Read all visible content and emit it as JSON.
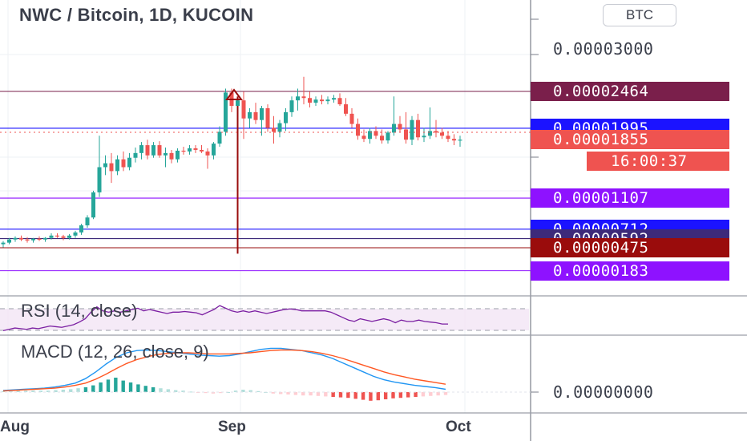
{
  "header": {
    "title": "NWC / Bitcoin, 1D, KUCOIN",
    "currency_badge": "BTC"
  },
  "price_axis": {
    "tick_labels": [
      {
        "text": "0.00003000",
        "value": 3e-05
      },
      {
        "text": "0.00002464",
        "value": 2.464e-05,
        "highlight": true,
        "color": "#7a1f4b"
      },
      {
        "text": "0.00001995",
        "value": 1.995e-05,
        "highlight": true,
        "color": "#1b13ff"
      },
      {
        "text": "0.00001855",
        "value": 1.855e-05,
        "highlight": true,
        "color": "#ef5350"
      },
      {
        "text": "0.00001107",
        "value": 1.107e-05,
        "highlight": true,
        "color": "#8e12ff"
      },
      {
        "text": "0.00000712",
        "value": 7.12e-06,
        "highlight": true,
        "color": "#1b13ff"
      },
      {
        "text": "0.00000592",
        "value": 5.92e-06,
        "highlight": true,
        "color": "#3d2a7a"
      },
      {
        "text": "0.00000475",
        "value": 4.75e-06,
        "highlight": true,
        "color": "#9a0c0c"
      },
      {
        "text": "0.00000183",
        "value": 1.83e-06,
        "highlight": true,
        "color": "#8e12ff"
      }
    ],
    "countdown": "16:00:37",
    "countdown_color": "#ef5350"
  },
  "indicators": {
    "rsi_label": "RSI (14, close)",
    "macd_label": "MACD (12, 26, close, 9)",
    "macd_axis_label": "0.00000000"
  },
  "time_axis": {
    "labels": [
      "Aug",
      "Sep",
      "Oct"
    ]
  },
  "colors": {
    "up": "#26a69a",
    "down": "#ef5350",
    "rsi_line": "#7b1fa2",
    "macd_line": "#2196f3",
    "signal_line": "#ff5722"
  },
  "chart_data": {
    "type": "candlestick",
    "title": "NWC / Bitcoin, 1D, KUCOIN",
    "price_unit": "BTC",
    "last_price": 1.855e-05,
    "horizontal_levels": [
      2.464e-05,
      1.995e-05,
      1.107e-05,
      7.12e-06,
      5.92e-06,
      4.75e-06,
      1.83e-06
    ],
    "candles": [
      [
        5.2e-06,
        5.6e-06,
        4.8e-06,
        5.4e-06
      ],
      [
        5.4e-06,
        6e-06,
        5.2e-06,
        5.8e-06
      ],
      [
        5.8e-06,
        6.2e-06,
        5.5e-06,
        6e-06
      ],
      [
        6e-06,
        6.3e-06,
        5.6e-06,
        5.8e-06
      ],
      [
        5.8e-06,
        6.1e-06,
        5.4e-06,
        5.7e-06
      ],
      [
        5.7e-06,
        6e-06,
        5.4e-06,
        5.9e-06
      ],
      [
        5.9e-06,
        6.2e-06,
        5.6e-06,
        5.8e-06
      ],
      [
        5.8e-06,
        6.1e-06,
        5.5e-06,
        6e-06
      ],
      [
        6e-06,
        6.6e-06,
        5.8e-06,
        6.3e-06
      ],
      [
        6.3e-06,
        6.6e-06,
        6e-06,
        6.2e-06
      ],
      [
        6.2e-06,
        6.4e-06,
        5.7e-06,
        6e-06
      ],
      [
        6e-06,
        6.5e-06,
        5.8e-06,
        6.3e-06
      ],
      [
        6.3e-06,
        6.9e-06,
        6e-06,
        6.7e-06
      ],
      [
        6.7e-06,
        7.8e-06,
        6.4e-06,
        7.6e-06
      ],
      [
        7.6e-06,
        8.9e-06,
        7.3e-06,
        8.6e-06
      ],
      [
        8.6e-06,
        1.2e-05,
        8.4e-06,
        1.18e-05
      ],
      [
        1.18e-05,
        1.9e-05,
        1.12e-05,
        1.5e-05
      ],
      [
        1.5e-05,
        1.65e-05,
        1.4e-05,
        1.55e-05
      ],
      [
        1.55e-05,
        1.68e-05,
        1.3e-05,
        1.45e-05
      ],
      [
        1.45e-05,
        1.65e-05,
        1.4e-05,
        1.6e-05
      ],
      [
        1.6e-05,
        1.7e-05,
        1.45e-05,
        1.5e-05
      ],
      [
        1.5e-05,
        1.68e-05,
        1.46e-05,
        1.62e-05
      ],
      [
        1.62e-05,
        1.75e-05,
        1.56e-05,
        1.68e-05
      ],
      [
        1.68e-05,
        1.82e-05,
        1.6e-05,
        1.78e-05
      ],
      [
        1.78e-05,
        1.85e-05,
        1.6e-05,
        1.65e-05
      ],
      [
        1.65e-05,
        1.82e-05,
        1.62e-05,
        1.78e-05
      ],
      [
        1.78e-05,
        1.83e-05,
        1.62e-05,
        1.65e-05
      ],
      [
        1.65e-05,
        1.75e-05,
        1.5e-05,
        1.68e-05
      ],
      [
        1.68e-05,
        1.72e-05,
        1.55e-05,
        1.6e-05
      ],
      [
        1.6e-05,
        1.74e-05,
        1.56e-05,
        1.71e-05
      ],
      [
        1.71e-05,
        1.76e-05,
        1.66e-05,
        1.7e-05
      ],
      [
        1.7e-05,
        1.78e-05,
        1.66e-05,
        1.74e-05
      ],
      [
        1.74e-05,
        1.78e-05,
        1.68e-05,
        1.72e-05
      ],
      [
        1.72e-05,
        1.78e-05,
        1.68e-05,
        1.7e-05
      ],
      [
        1.7e-05,
        1.74e-05,
        1.48e-05,
        1.65e-05
      ],
      [
        1.65e-05,
        1.82e-05,
        1.6e-05,
        1.8e-05
      ],
      [
        1.8e-05,
        2.02e-05,
        1.76e-05,
        1.95e-05
      ],
      [
        1.95e-05,
        2.5e-05,
        1.9e-05,
        2.45e-05
      ],
      [
        2.45e-05,
        2.5e-05,
        2.2e-05,
        2.28e-05
      ],
      [
        2.28e-05,
        2.4e-05,
        4e-06,
        2.35e-05
      ],
      [
        2.35e-05,
        2.46e-05,
        1.86e-05,
        2.12e-05
      ],
      [
        2.12e-05,
        2.25e-05,
        2e-05,
        2.2e-05
      ],
      [
        2.2e-05,
        2.32e-05,
        2.05e-05,
        2.1e-05
      ],
      [
        2.1e-05,
        2.28e-05,
        1.9e-05,
        2.25e-05
      ],
      [
        2.25e-05,
        2.3e-05,
        1.95e-05,
        2e-05
      ],
      [
        2e-05,
        2.15e-05,
        1.8e-05,
        1.95e-05
      ],
      [
        1.95e-05,
        2.1e-05,
        1.88e-05,
        2.06e-05
      ],
      [
        2.06e-05,
        2.25e-05,
        1.96e-05,
        2.2e-05
      ],
      [
        2.2e-05,
        2.4e-05,
        2.14e-05,
        2.35e-05
      ],
      [
        2.35e-05,
        2.5e-05,
        2.22e-05,
        2.4e-05
      ],
      [
        2.4e-05,
        2.65e-05,
        2.3e-05,
        2.38e-05
      ],
      [
        2.38e-05,
        2.46e-05,
        2.26e-05,
        2.32e-05
      ],
      [
        2.32e-05,
        2.4e-05,
        2.28e-05,
        2.36e-05
      ],
      [
        2.36e-05,
        2.42e-05,
        2.3e-05,
        2.34e-05
      ],
      [
        2.34e-05,
        2.4e-05,
        2.3e-05,
        2.36e-05
      ],
      [
        2.36e-05,
        2.42e-05,
        2.32e-05,
        2.38e-05
      ],
      [
        2.38e-05,
        2.44e-05,
        2.28e-05,
        2.3e-05
      ],
      [
        2.3e-05,
        2.38e-05,
        2.15e-05,
        2.18e-05
      ],
      [
        2.18e-05,
        2.25e-05,
        2e-05,
        2.05e-05
      ],
      [
        2.05e-05,
        2.12e-05,
        1.85e-05,
        1.9e-05
      ],
      [
        1.9e-05,
        1.98e-05,
        1.82e-05,
        1.86e-05
      ],
      [
        1.86e-05,
        2e-05,
        1.8e-05,
        1.96e-05
      ],
      [
        1.96e-05,
        2.02e-05,
        1.86e-05,
        1.9e-05
      ],
      [
        1.9e-05,
        1.98e-05,
        1.8e-05,
        1.84e-05
      ],
      [
        1.84e-05,
        1.96e-05,
        1.8e-05,
        1.94e-05
      ],
      [
        1.94e-05,
        2.4e-05,
        1.9e-05,
        2.05e-05
      ],
      [
        2.05e-05,
        2.15e-05,
        1.94e-05,
        1.98e-05
      ],
      [
        1.98e-05,
        2.2e-05,
        1.8e-05,
        1.85e-05
      ],
      [
        1.85e-05,
        2.15e-05,
        1.78e-05,
        2.1e-05
      ],
      [
        2.1e-05,
        2.18e-05,
        1.84e-05,
        1.88e-05
      ],
      [
        1.88e-05,
        2e-05,
        1.82e-05,
        1.9e-05
      ],
      [
        1.9e-05,
        2.26e-05,
        1.86e-05,
        1.96e-05
      ],
      [
        1.96e-05,
        2.1e-05,
        1.88e-05,
        1.94e-05
      ],
      [
        1.94e-05,
        2e-05,
        1.86e-05,
        1.9e-05
      ],
      [
        1.9e-05,
        1.96e-05,
        1.82e-05,
        1.86e-05
      ],
      [
        1.86e-05,
        1.92e-05,
        1.78e-05,
        1.84e-05
      ],
      [
        1.84e-05,
        1.9e-05,
        1.76e-05,
        1.85e-05
      ]
    ],
    "rsi": [
      42,
      44,
      46,
      45,
      44,
      46,
      45,
      47,
      49,
      48,
      47,
      49,
      51,
      55,
      60,
      70,
      78,
      72,
      70,
      72,
      70,
      72,
      74,
      76,
      72,
      74,
      72,
      70,
      68,
      70,
      70,
      71,
      70,
      69,
      66,
      70,
      74,
      80,
      76,
      72,
      70,
      72,
      70,
      72,
      70,
      68,
      70,
      72,
      74,
      75,
      74,
      72,
      72,
      72,
      72,
      72,
      70,
      66,
      62,
      58,
      56,
      60,
      58,
      56,
      58,
      60,
      58,
      54,
      58,
      56,
      56,
      58,
      56,
      55,
      54,
      52,
      52
    ],
    "macd": {
      "axis_zero_label": "0.00000000",
      "histogram": [
        0.2,
        0.2,
        0.3,
        0.3,
        0.3,
        0.3,
        0.3,
        0.4,
        0.5,
        0.6,
        0.8,
        1.0,
        1.4,
        2.0,
        2.6,
        3.0,
        2.4,
        2.0,
        1.6,
        1.3,
        1.0,
        0.8,
        0.6,
        0.4,
        0.3,
        0.1,
        -0.1,
        -0.2,
        -0.3,
        -0.2,
        0.0,
        0.3,
        0.5,
        0.4,
        0.2,
        0.0,
        -0.3,
        -0.4,
        -0.5,
        -0.6,
        -0.7,
        -0.7,
        -0.8,
        -0.9,
        -1.0,
        -1.1,
        -1.2,
        -1.4,
        -1.6,
        -1.8,
        -1.7,
        -1.5,
        -1.3,
        -1.2,
        -1.1,
        -1.0,
        -0.9,
        -0.8,
        -0.7,
        -0.6
      ],
      "macd_line": [
        0.3,
        0.4,
        0.5,
        0.6,
        0.7,
        0.9,
        1.2,
        1.6,
        2.4,
        3.6,
        5.0,
        6.2,
        7.0,
        7.4,
        7.5,
        7.4,
        7.2,
        7.0,
        6.8,
        6.6,
        6.5,
        6.4,
        6.5,
        6.8,
        7.2,
        7.6,
        7.8,
        7.8,
        7.6,
        7.4,
        7.0,
        6.6,
        6.0,
        5.2,
        4.4,
        3.6,
        2.8,
        2.2,
        1.8,
        1.5,
        1.2,
        1.0,
        0.8,
        0.5
      ],
      "signal_line": [
        0.2,
        0.3,
        0.4,
        0.5,
        0.6,
        0.7,
        0.9,
        1.2,
        1.6,
        2.3,
        3.2,
        4.2,
        5.1,
        5.8,
        6.3,
        6.7,
        6.9,
        7.0,
        7.0,
        6.9,
        6.8,
        6.8,
        6.8,
        6.9,
        7.0,
        7.2,
        7.4,
        7.5,
        7.5,
        7.4,
        7.2,
        6.9,
        6.5,
        6.0,
        5.4,
        4.8,
        4.2,
        3.6,
        3.1,
        2.7,
        2.3,
        2.0,
        1.7,
        1.4
      ]
    }
  }
}
